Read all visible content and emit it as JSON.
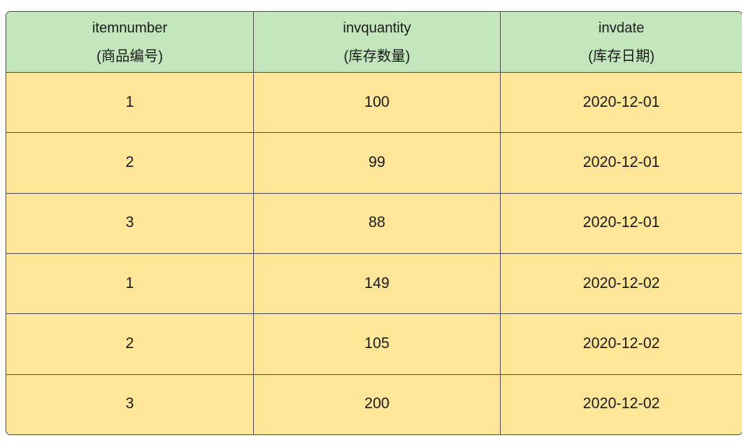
{
  "table": {
    "headers": [
      {
        "name": "itemnumber",
        "sub": "(商品编号)"
      },
      {
        "name": "invquantity",
        "sub": "(库存数量)"
      },
      {
        "name": "invdate",
        "sub": "(库存日期)"
      }
    ],
    "rows": [
      [
        "1",
        "100",
        "2020-12-01"
      ],
      [
        "2",
        "99",
        "2020-12-01"
      ],
      [
        "3",
        "88",
        "2020-12-01"
      ],
      [
        "1",
        "149",
        "2020-12-02"
      ],
      [
        "2",
        "105",
        "2020-12-02"
      ],
      [
        "3",
        "200",
        "2020-12-02"
      ]
    ]
  },
  "colors": {
    "header_bg": "#c3e6bd",
    "row_bg": "#ffe699",
    "border": "#5c5c5c"
  }
}
